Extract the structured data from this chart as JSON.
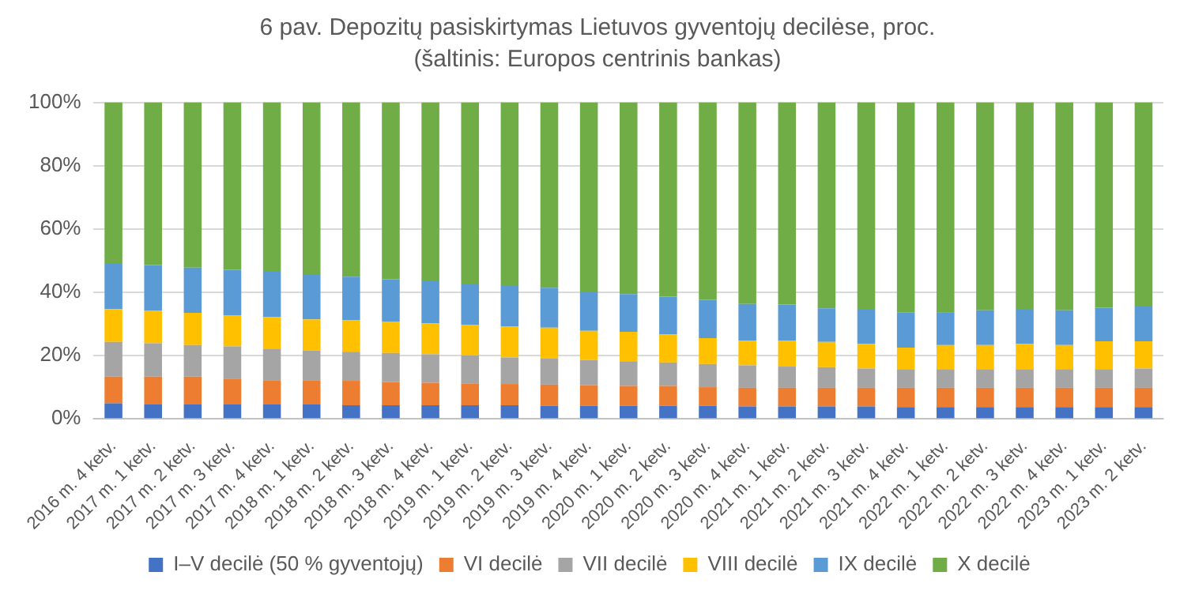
{
  "chart_data": {
    "type": "bar",
    "stacked": true,
    "title": "6 pav. Depozitų pasiskirtymas Lietuvos gyventojų decilėse, proc. (šaltinis: Europos centrinis bankas)",
    "categories": [
      "2016 m. 4 ketv.",
      "2017 m. 1 ketv.",
      "2017 m. 2 ketv.",
      "2017 m. 3 ketv.",
      "2017 m. 4 ketv.",
      "2018 m. 1 ketv.",
      "2018 m. 2 ketv.",
      "2018 m. 3 ketv.",
      "2018 m. 4 ketv.",
      "2019 m. 1 ketv.",
      "2019 m. 2 ketv.",
      "2019 m. 3 ketv.",
      "2019 m. 4 ketv.",
      "2020 m. 1 ketv.",
      "2020 m. 2 ketv.",
      "2020 m. 3 ketv.",
      "2020 m. 4 ketv.",
      "2021 m. 1 ketv.",
      "2021 m. 2 ketv.",
      "2021 m. 3 ketv.",
      "2021 m. 4 ketv.",
      "2022 m. 1 ketv.",
      "2022 m. 2 ketv.",
      "2022 m. 3 ketv.",
      "2022 m. 4 ketv.",
      "2023 m. 1 ketv.",
      "2023 m. 2 ketv."
    ],
    "series": [
      {
        "name": "I–V decilė (50 % gyventojų)",
        "color": "#4472c4",
        "values": [
          4.9,
          4.5,
          4.5,
          4.5,
          4.5,
          4.5,
          4.3,
          4.3,
          4.3,
          4.3,
          4.3,
          4.1,
          4.1,
          4.1,
          4.1,
          4.1,
          3.9,
          3.9,
          3.9,
          3.9,
          3.7,
          3.7,
          3.7,
          3.7,
          3.7,
          3.7,
          3.7
        ]
      },
      {
        "name": "VI decilė",
        "color": "#ed7d31",
        "values": [
          8.4,
          8.8,
          8.8,
          8.2,
          7.7,
          7.7,
          7.7,
          7.3,
          7.1,
          6.9,
          6.7,
          6.7,
          6.5,
          6.3,
          6.3,
          5.9,
          5.9,
          5.9,
          5.9,
          5.9,
          6.1,
          6.1,
          6.1,
          6.1,
          6.1,
          6.1,
          6.1
        ]
      },
      {
        "name": "VII decilė",
        "color": "#a5a5a5",
        "values": [
          11.0,
          10.6,
          10.0,
          10.2,
          9.8,
          9.4,
          9.2,
          9.2,
          9.0,
          8.8,
          8.4,
          8.2,
          8.0,
          7.8,
          7.4,
          7.3,
          7.1,
          6.7,
          6.5,
          6.1,
          5.9,
          5.9,
          5.9,
          5.9,
          5.9,
          5.9,
          6.1
        ]
      },
      {
        "name": "VIII decilė",
        "color": "#ffc000",
        "values": [
          10.4,
          10.2,
          10.2,
          9.8,
          10.2,
          9.8,
          10.0,
          9.8,
          9.8,
          9.6,
          9.8,
          9.8,
          9.2,
          9.3,
          8.9,
          8.2,
          7.8,
          8.2,
          8.0,
          7.8,
          6.8,
          7.6,
          7.6,
          8.0,
          7.6,
          8.8,
          8.6
        ]
      },
      {
        "name": "IX decilė",
        "color": "#5b9bd5",
        "values": [
          14.5,
          14.5,
          14.3,
          14.4,
          14.3,
          14.1,
          13.7,
          13.5,
          13.3,
          12.9,
          12.8,
          12.6,
          12.4,
          11.9,
          11.9,
          12.1,
          11.6,
          11.4,
          10.6,
          10.8,
          11.2,
          10.4,
          11.0,
          10.8,
          11.0,
          10.6,
          11.0
        ]
      },
      {
        "name": "X decilė",
        "color": "#70ad47",
        "values": [
          50.8,
          51.4,
          52.2,
          52.9,
          53.5,
          54.5,
          55.1,
          55.9,
          56.5,
          57.5,
          58.0,
          58.6,
          59.8,
          60.6,
          61.4,
          62.4,
          63.7,
          63.9,
          65.1,
          65.5,
          66.3,
          66.3,
          65.7,
          65.5,
          65.7,
          64.9,
          64.5
        ]
      }
    ],
    "ylim": [
      0,
      100
    ],
    "yticks": [
      {
        "value": 0,
        "label": "0%"
      },
      {
        "value": 20,
        "label": "20%"
      },
      {
        "value": 40,
        "label": "40%"
      },
      {
        "value": 60,
        "label": "60%"
      },
      {
        "value": 80,
        "label": "80%"
      },
      {
        "value": 100,
        "label": "100%"
      }
    ],
    "grid": "y",
    "legend": "bottom"
  }
}
